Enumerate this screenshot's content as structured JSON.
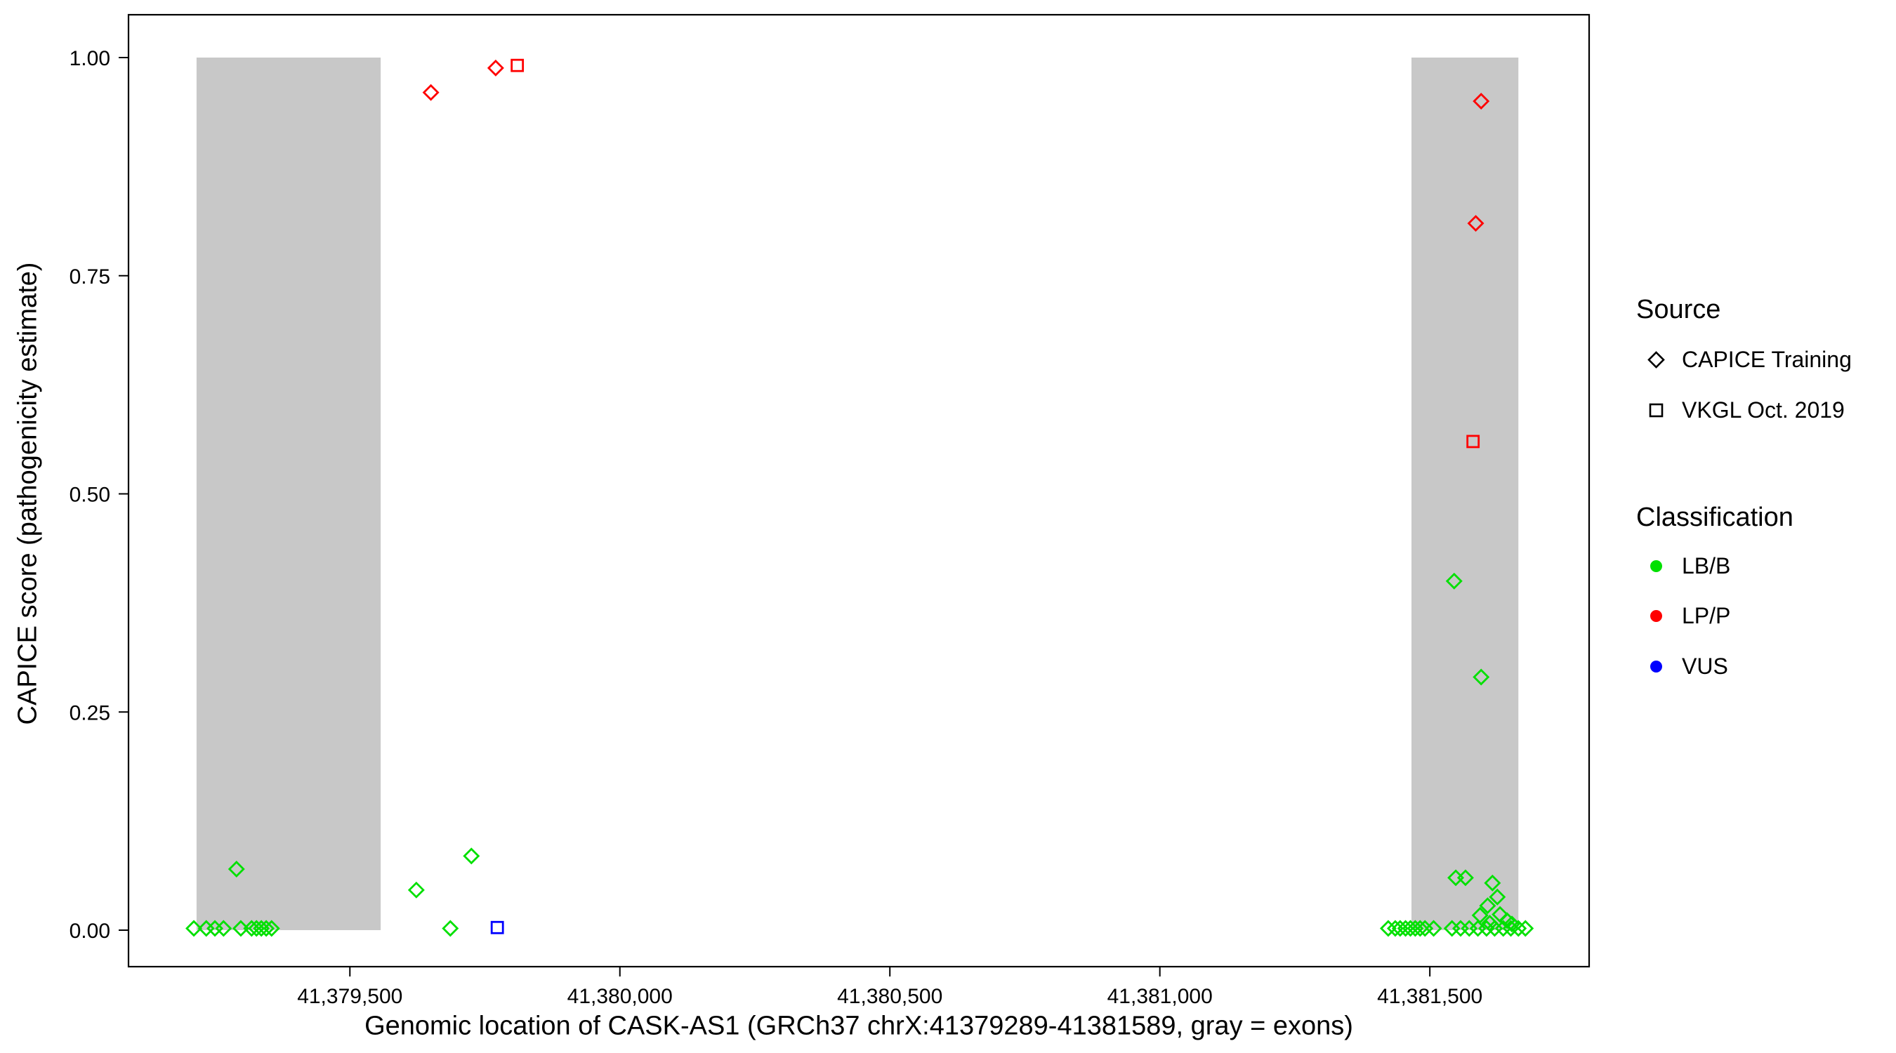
{
  "chart_data": {
    "type": "scatter",
    "title": "",
    "xlabel": "Genomic location of CASK-AS1 (GRCh37 chrX:41379289-41381589, gray = exons)",
    "ylabel": "CAPICE score (pathogenicity estimate)",
    "xlim": [
      41379090,
      41381795
    ],
    "ylim": [
      0,
      1
    ],
    "x_ticks": [
      41379500,
      41380000,
      41380500,
      41381000,
      41381500
    ],
    "x_tick_labels": [
      "41,379,500",
      "41,380,000",
      "41,380,500",
      "41,381,000",
      "41,381,500"
    ],
    "y_ticks": [
      0,
      0.25,
      0.5,
      0.75,
      1
    ],
    "y_tick_labels": [
      "0.00",
      "0.25",
      "0.50",
      "0.75",
      "1.00"
    ],
    "grid": false,
    "legend_position": "right",
    "colors": {
      "LB/B": "#00E000",
      "LP/P": "#FF0000",
      "VUS": "#0000FF",
      "exon": "#C8C8C8",
      "axis": "#000000"
    },
    "exon_regions": [
      {
        "start": 41379216,
        "end": 41379557
      },
      {
        "start": 41381466,
        "end": 41381664
      }
    ],
    "points": [
      {
        "x": 41379650,
        "y": 0.96,
        "source": "CAPICE Training",
        "cls": "LP/P"
      },
      {
        "x": 41379770,
        "y": 0.988,
        "source": "CAPICE Training",
        "cls": "LP/P"
      },
      {
        "x": 41379810,
        "y": 0.991,
        "source": "VKGL Oct. 2019",
        "cls": "LP/P"
      },
      {
        "x": 41381595,
        "y": 0.95,
        "source": "CAPICE Training",
        "cls": "LP/P"
      },
      {
        "x": 41381585,
        "y": 0.81,
        "source": "CAPICE Training",
        "cls": "LP/P"
      },
      {
        "x": 41381580,
        "y": 0.56,
        "source": "VKGL Oct. 2019",
        "cls": "LP/P"
      },
      {
        "x": 41381545,
        "y": 0.4,
        "source": "CAPICE Training",
        "cls": "LB/B"
      },
      {
        "x": 41381595,
        "y": 0.29,
        "source": "CAPICE Training",
        "cls": "LB/B"
      },
      {
        "x": 41379290,
        "y": 0.07,
        "source": "CAPICE Training",
        "cls": "LB/B"
      },
      {
        "x": 41379725,
        "y": 0.085,
        "source": "CAPICE Training",
        "cls": "LB/B"
      },
      {
        "x": 41379623,
        "y": 0.046,
        "source": "CAPICE Training",
        "cls": "LB/B"
      },
      {
        "x": 41379686,
        "y": 0.002,
        "source": "CAPICE Training",
        "cls": "LB/B"
      },
      {
        "x": 41379773,
        "y": 0.003,
        "source": "VKGL Oct. 2019",
        "cls": "VUS"
      },
      {
        "x": 41379211,
        "y": 0.002,
        "source": "CAPICE Training",
        "cls": "LB/B"
      },
      {
        "x": 41379234,
        "y": 0.002,
        "source": "CAPICE Training",
        "cls": "LB/B"
      },
      {
        "x": 41379250,
        "y": 0.002,
        "source": "CAPICE Training",
        "cls": "LB/B"
      },
      {
        "x": 41379266,
        "y": 0.002,
        "source": "CAPICE Training",
        "cls": "LB/B"
      },
      {
        "x": 41379298,
        "y": 0.002,
        "source": "CAPICE Training",
        "cls": "LB/B"
      },
      {
        "x": 41379318,
        "y": 0.002,
        "source": "CAPICE Training",
        "cls": "LB/B"
      },
      {
        "x": 41379327,
        "y": 0.002,
        "source": "CAPICE Training",
        "cls": "LB/B"
      },
      {
        "x": 41379336,
        "y": 0.002,
        "source": "CAPICE Training",
        "cls": "LB/B"
      },
      {
        "x": 41379345,
        "y": 0.002,
        "source": "CAPICE Training",
        "cls": "LB/B"
      },
      {
        "x": 41379355,
        "y": 0.002,
        "source": "CAPICE Training",
        "cls": "LB/B"
      },
      {
        "x": 41381548,
        "y": 0.06,
        "source": "CAPICE Training",
        "cls": "LB/B"
      },
      {
        "x": 41381566,
        "y": 0.06,
        "source": "CAPICE Training",
        "cls": "LB/B"
      },
      {
        "x": 41381616,
        "y": 0.054,
        "source": "CAPICE Training",
        "cls": "LB/B"
      },
      {
        "x": 41381625,
        "y": 0.038,
        "source": "CAPICE Training",
        "cls": "LB/B"
      },
      {
        "x": 41381607,
        "y": 0.028,
        "source": "CAPICE Training",
        "cls": "LB/B"
      },
      {
        "x": 41381630,
        "y": 0.018,
        "source": "CAPICE Training",
        "cls": "LB/B"
      },
      {
        "x": 41381593,
        "y": 0.017,
        "source": "CAPICE Training",
        "cls": "LB/B"
      },
      {
        "x": 41381643,
        "y": 0.011,
        "source": "CAPICE Training",
        "cls": "LB/B"
      },
      {
        "x": 41381611,
        "y": 0.008,
        "source": "CAPICE Training",
        "cls": "LB/B"
      },
      {
        "x": 41381652,
        "y": 0.007,
        "source": "CAPICE Training",
        "cls": "LB/B"
      },
      {
        "x": 41381423,
        "y": 0.002,
        "source": "CAPICE Training",
        "cls": "LB/B"
      },
      {
        "x": 41381436,
        "y": 0.002,
        "source": "CAPICE Training",
        "cls": "LB/B"
      },
      {
        "x": 41381445,
        "y": 0.002,
        "source": "CAPICE Training",
        "cls": "LB/B"
      },
      {
        "x": 41381455,
        "y": 0.002,
        "source": "CAPICE Training",
        "cls": "LB/B"
      },
      {
        "x": 41381464,
        "y": 0.002,
        "source": "CAPICE Training",
        "cls": "LB/B"
      },
      {
        "x": 41381473,
        "y": 0.002,
        "source": "CAPICE Training",
        "cls": "LB/B"
      },
      {
        "x": 41381482,
        "y": 0.002,
        "source": "CAPICE Training",
        "cls": "LB/B"
      },
      {
        "x": 41381491,
        "y": 0.002,
        "source": "CAPICE Training",
        "cls": "LB/B"
      },
      {
        "x": 41381507,
        "y": 0.002,
        "source": "CAPICE Training",
        "cls": "LB/B"
      },
      {
        "x": 41381541,
        "y": 0.002,
        "source": "CAPICE Training",
        "cls": "LB/B"
      },
      {
        "x": 41381557,
        "y": 0.002,
        "source": "CAPICE Training",
        "cls": "LB/B"
      },
      {
        "x": 41381573,
        "y": 0.002,
        "source": "CAPICE Training",
        "cls": "LB/B"
      },
      {
        "x": 41381589,
        "y": 0.002,
        "source": "CAPICE Training",
        "cls": "LB/B"
      },
      {
        "x": 41381605,
        "y": 0.002,
        "source": "CAPICE Training",
        "cls": "LB/B"
      },
      {
        "x": 41381620,
        "y": 0.002,
        "source": "CAPICE Training",
        "cls": "LB/B"
      },
      {
        "x": 41381636,
        "y": 0.002,
        "source": "CAPICE Training",
        "cls": "LB/B"
      },
      {
        "x": 41381650,
        "y": 0.002,
        "source": "CAPICE Training",
        "cls": "LB/B"
      },
      {
        "x": 41381664,
        "y": 0.002,
        "source": "CAPICE Training",
        "cls": "LB/B"
      },
      {
        "x": 41381677,
        "y": 0.002,
        "source": "CAPICE Training",
        "cls": "LB/B"
      }
    ]
  },
  "legend": {
    "source": {
      "title": "Source",
      "items": [
        {
          "label": "CAPICE Training",
          "shape": "diamond"
        },
        {
          "label": "VKGL Oct. 2019",
          "shape": "square"
        }
      ]
    },
    "classification": {
      "title": "Classification",
      "items": [
        {
          "label": "LB/B",
          "color": "#00E000"
        },
        {
          "label": "LP/P",
          "color": "#FF0000"
        },
        {
          "label": "VUS",
          "color": "#0000FF"
        }
      ]
    }
  }
}
